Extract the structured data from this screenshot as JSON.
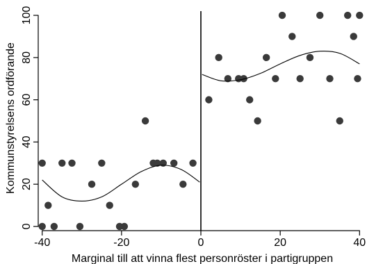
{
  "chart_data": {
    "type": "scatter",
    "xlabel": "Marginal till att vinna flest personröster i partigruppen",
    "ylabel": "Kommunstyrelsens ordförande",
    "xlim": [
      -41,
      41
    ],
    "ylim": [
      -2,
      102
    ],
    "x_ticks": [
      -40,
      -20,
      0,
      20,
      40
    ],
    "x_tick_labels": [
      "-40",
      "-20",
      "0",
      "20",
      "40"
    ],
    "y_ticks": [
      0,
      20,
      40,
      60,
      80,
      100
    ],
    "y_tick_labels": [
      "0",
      "20",
      "40",
      "60",
      "80",
      "100"
    ],
    "grid": false,
    "legend": "none",
    "cutoff_x": 0,
    "colors": {
      "points": "#3a3a3a",
      "fit": "#000000",
      "axes": "#000000"
    },
    "points": [
      {
        "x": -40,
        "y": 0
      },
      {
        "x": -40,
        "y": 30
      },
      {
        "x": -38.5,
        "y": 10
      },
      {
        "x": -37,
        "y": 0
      },
      {
        "x": -35,
        "y": 30
      },
      {
        "x": -32.5,
        "y": 30
      },
      {
        "x": -30.5,
        "y": 0
      },
      {
        "x": -27.5,
        "y": 20
      },
      {
        "x": -25,
        "y": 30
      },
      {
        "x": -23,
        "y": 10
      },
      {
        "x": -20.5,
        "y": 0
      },
      {
        "x": -19.3,
        "y": 0
      },
      {
        "x": -16.5,
        "y": 20
      },
      {
        "x": -14,
        "y": 50
      },
      {
        "x": -12,
        "y": 30
      },
      {
        "x": -11,
        "y": 30
      },
      {
        "x": -9.5,
        "y": 30
      },
      {
        "x": -6.8,
        "y": 30
      },
      {
        "x": -4.5,
        "y": 20
      },
      {
        "x": -2,
        "y": 30
      },
      {
        "x": 2,
        "y": 60
      },
      {
        "x": 4.5,
        "y": 80
      },
      {
        "x": 6.8,
        "y": 70
      },
      {
        "x": 9.5,
        "y": 70
      },
      {
        "x": 10.8,
        "y": 70
      },
      {
        "x": 12.3,
        "y": 60
      },
      {
        "x": 14.3,
        "y": 50
      },
      {
        "x": 16.5,
        "y": 80
      },
      {
        "x": 18.8,
        "y": 70
      },
      {
        "x": 20.5,
        "y": 100
      },
      {
        "x": 23,
        "y": 90
      },
      {
        "x": 25,
        "y": 70
      },
      {
        "x": 27.5,
        "y": 80
      },
      {
        "x": 30,
        "y": 100
      },
      {
        "x": 32.5,
        "y": 70
      },
      {
        "x": 35,
        "y": 50
      },
      {
        "x": 37,
        "y": 100
      },
      {
        "x": 38.5,
        "y": 90
      },
      {
        "x": 39.5,
        "y": 70
      },
      {
        "x": 40,
        "y": 100
      }
    ],
    "fit_left": {
      "x": [
        -40,
        -35,
        -30,
        -25,
        -20,
        -15,
        -10,
        -5,
        -0.3
      ],
      "y": [
        22,
        14,
        12,
        14,
        20,
        26,
        29,
        27,
        21
      ]
    },
    "fit_right": {
      "x": [
        0.3,
        5,
        10,
        15,
        20,
        25,
        30,
        35,
        40
      ],
      "y": [
        72,
        69,
        69.5,
        72.5,
        77,
        81,
        83,
        82,
        77
      ]
    }
  }
}
